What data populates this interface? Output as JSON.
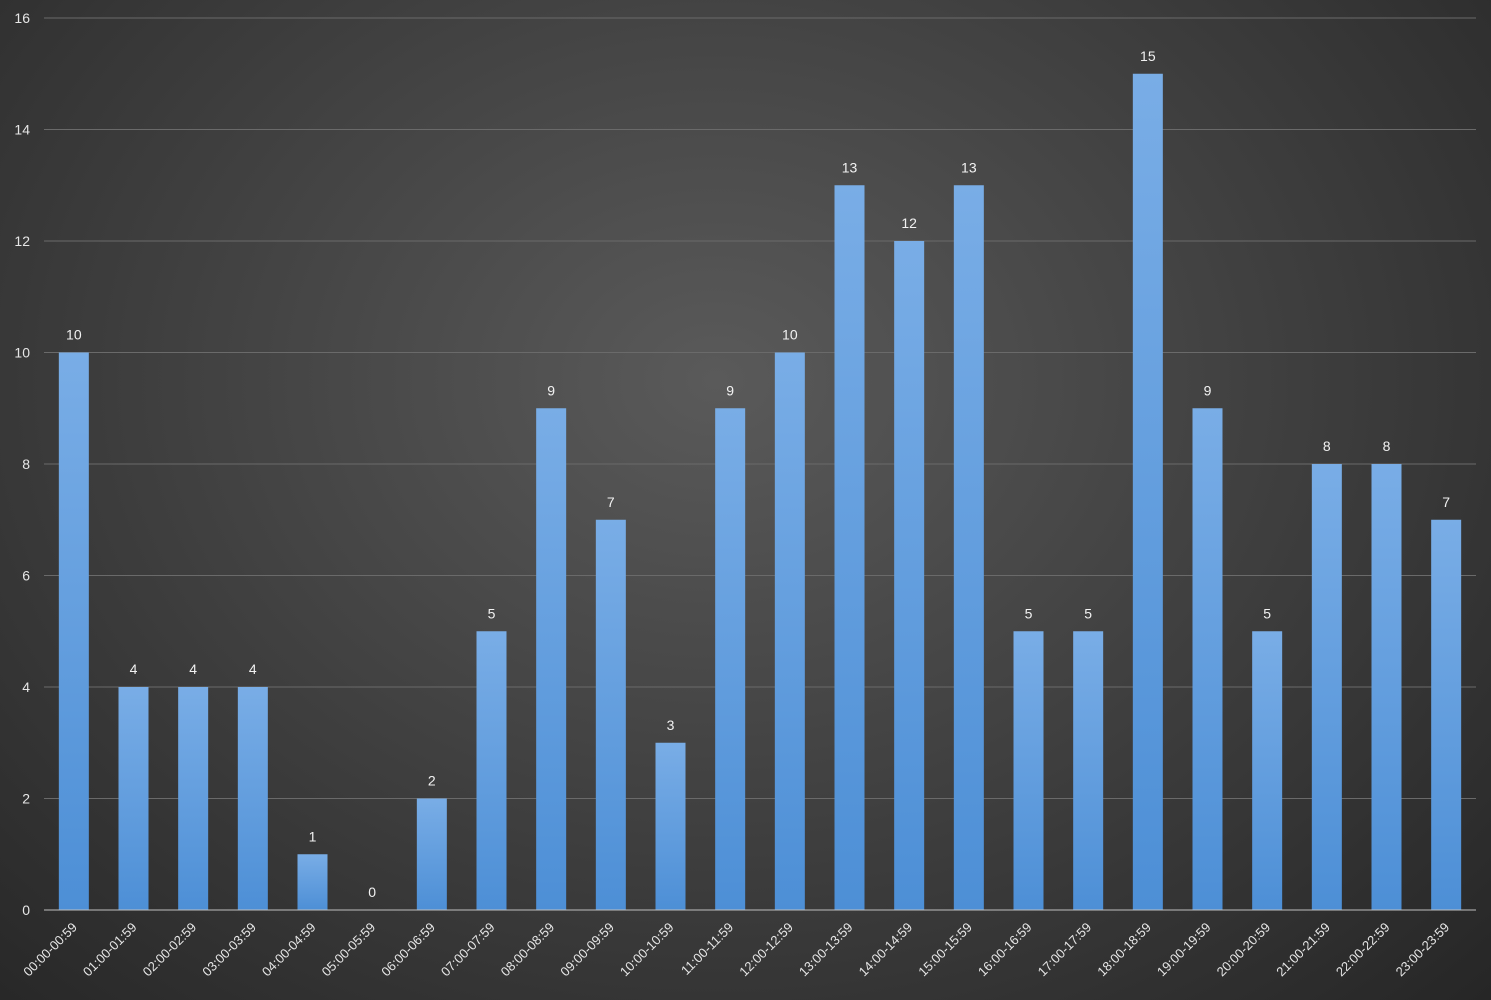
{
  "chart_data": {
    "type": "bar",
    "title": "",
    "xlabel": "",
    "ylabel": "",
    "categories": [
      "00:00-00:59",
      "01:00-01:59",
      "02:00-02:59",
      "03:00-03:59",
      "04:00-04:59",
      "05:00-05:59",
      "06:00-06:59",
      "07:00-07:59",
      "08:00-08:59",
      "09:00-09:59",
      "10:00-10:59",
      "11:00-11:59",
      "12:00-12:59",
      "13:00-13:59",
      "14:00-14:59",
      "15:00-15:59",
      "16:00-16:59",
      "17:00-17:59",
      "18:00-18:59",
      "19:00-19:59",
      "20:00-20:59",
      "21:00-21:59",
      "22:00-22:59",
      "23:00-23:59"
    ],
    "values": [
      10,
      4,
      4,
      4,
      1,
      0,
      2,
      5,
      9,
      7,
      3,
      9,
      10,
      13,
      12,
      13,
      5,
      5,
      15,
      9,
      5,
      8,
      8,
      7
    ],
    "ylim": [
      0,
      16
    ],
    "yticks": [
      0,
      2,
      4,
      6,
      8,
      10,
      12,
      14,
      16
    ],
    "grid": true,
    "legend": "none",
    "data_labels": true,
    "colors": {
      "bar_top": "#79ade6",
      "bar_bottom": "#4d8fd6",
      "gridline": "#6a6a6a",
      "axis": "#bfbfbf"
    }
  }
}
